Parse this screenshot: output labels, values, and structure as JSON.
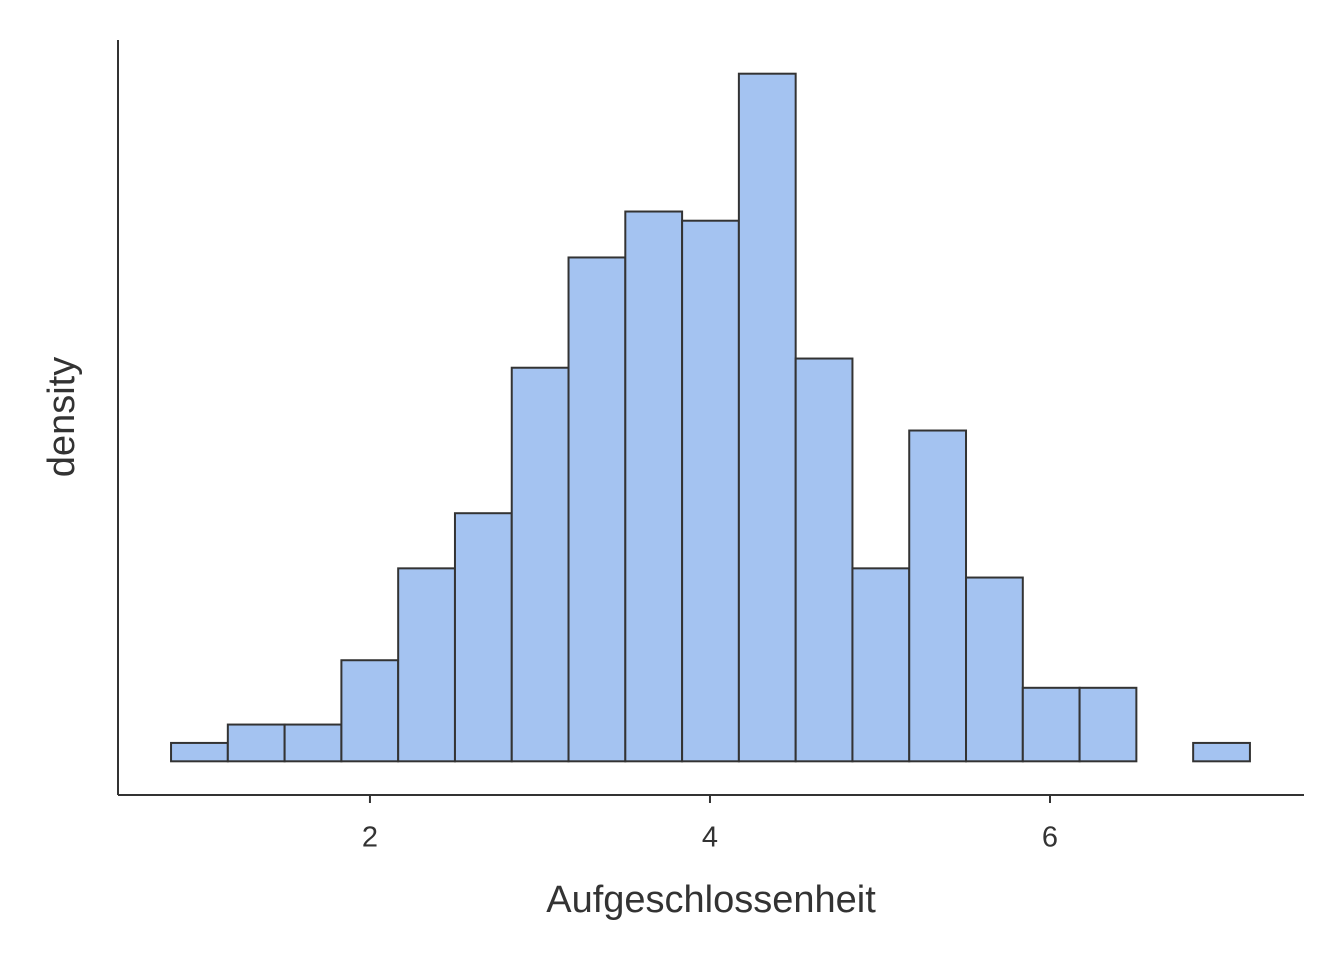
{
  "chart_data": {
    "type": "histogram",
    "x_label": "Aufgeschlossenheit",
    "y_label": "density",
    "bins": [
      0.83,
      1.164,
      1.498,
      1.832,
      2.166,
      2.5,
      2.834,
      3.168,
      3.502,
      3.836,
      4.17,
      4.504,
      4.838,
      5.172,
      5.506,
      5.84,
      6.174,
      6.508,
      6.842,
      7.176
    ],
    "values": [
      0.012,
      0.024,
      0.024,
      0.066,
      0.126,
      0.162,
      0.257,
      0.329,
      0.359,
      0.353,
      0.449,
      0.263,
      0.126,
      0.216,
      0.12,
      0.048,
      0.048,
      0,
      0.012
    ],
    "color": "#a4c3f1",
    "edgecolor": "#333333",
    "xlim": [
      0.518,
      7.494
    ],
    "ylim": [
      -0.022,
      0.471
    ],
    "xticks": [
      2,
      4,
      6
    ]
  }
}
